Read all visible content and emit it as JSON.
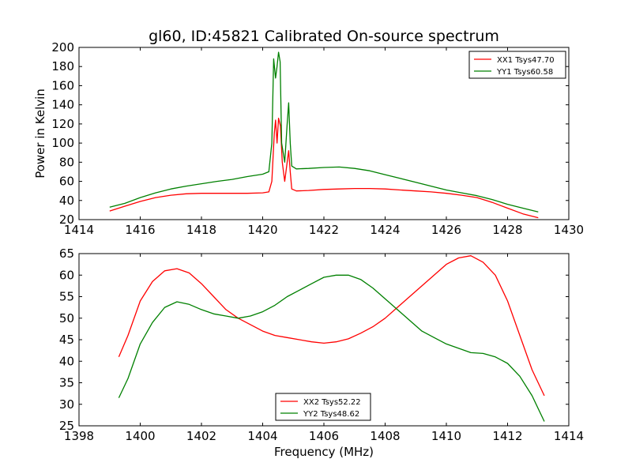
{
  "title": "gl60, ID:45821 Calibrated On-source spectrum",
  "chart_data": [
    {
      "type": "line",
      "ylabel": "Power in Kelvin",
      "xlabel": "",
      "xlim": [
        1414,
        1430
      ],
      "ylim": [
        20,
        200
      ],
      "xticks": [
        "1414",
        "1416",
        "1418",
        "1420",
        "1422",
        "1424",
        "1426",
        "1428",
        "1430"
      ],
      "yticks": [
        "20",
        "40",
        "60",
        "80",
        "100",
        "120",
        "140",
        "160",
        "180",
        "200"
      ],
      "legend_position": "top-right",
      "grid": false,
      "series": [
        {
          "name": "XX1 Tsys47.70",
          "color": "#ff0000",
          "points": [
            [
              1415.0,
              29
            ],
            [
              1415.5,
              34
            ],
            [
              1416.0,
              39
            ],
            [
              1416.5,
              43
            ],
            [
              1417.0,
              45.5
            ],
            [
              1417.5,
              47
            ],
            [
              1418.0,
              47.5
            ],
            [
              1418.5,
              47.5
            ],
            [
              1419.0,
              47.5
            ],
            [
              1419.5,
              47.5
            ],
            [
              1420.0,
              48
            ],
            [
              1420.2,
              49
            ],
            [
              1420.3,
              60
            ],
            [
              1420.38,
              110
            ],
            [
              1420.42,
              124
            ],
            [
              1420.47,
              100
            ],
            [
              1420.52,
              126
            ],
            [
              1420.58,
              118
            ],
            [
              1420.64,
              80
            ],
            [
              1420.72,
              60
            ],
            [
              1420.8,
              80
            ],
            [
              1420.85,
              92
            ],
            [
              1420.9,
              70
            ],
            [
              1420.95,
              52
            ],
            [
              1421.1,
              50
            ],
            [
              1421.5,
              50.5
            ],
            [
              1422.0,
              51.5
            ],
            [
              1422.5,
              52
            ],
            [
              1423.0,
              52.5
            ],
            [
              1423.5,
              52.5
            ],
            [
              1424.0,
              52
            ],
            [
              1424.5,
              51
            ],
            [
              1425.0,
              50
            ],
            [
              1425.5,
              49
            ],
            [
              1426.0,
              47.5
            ],
            [
              1426.5,
              45.5
            ],
            [
              1427.0,
              43
            ],
            [
              1427.5,
              38
            ],
            [
              1428.0,
              32
            ],
            [
              1428.5,
              26
            ],
            [
              1429.0,
              22
            ]
          ]
        },
        {
          "name": "YY1 Tsys60.58",
          "color": "#008000",
          "points": [
            [
              1415.0,
              33
            ],
            [
              1415.5,
              37
            ],
            [
              1416.0,
              43
            ],
            [
              1416.5,
              48
            ],
            [
              1417.0,
              52
            ],
            [
              1417.5,
              55
            ],
            [
              1418.0,
              57.5
            ],
            [
              1418.5,
              60
            ],
            [
              1419.0,
              62
            ],
            [
              1419.5,
              65
            ],
            [
              1420.0,
              67.5
            ],
            [
              1420.2,
              70
            ],
            [
              1420.3,
              100
            ],
            [
              1420.36,
              188
            ],
            [
              1420.42,
              168
            ],
            [
              1420.47,
              180
            ],
            [
              1420.52,
              195
            ],
            [
              1420.57,
              185
            ],
            [
              1420.62,
              100
            ],
            [
              1420.72,
              80
            ],
            [
              1420.8,
              120
            ],
            [
              1420.85,
              142
            ],
            [
              1420.9,
              100
            ],
            [
              1420.95,
              76
            ],
            [
              1421.1,
              73
            ],
            [
              1421.5,
              73.5
            ],
            [
              1422.0,
              74.5
            ],
            [
              1422.5,
              75
            ],
            [
              1423.0,
              73.5
            ],
            [
              1423.5,
              71
            ],
            [
              1424.0,
              67
            ],
            [
              1424.5,
              63
            ],
            [
              1425.0,
              59
            ],
            [
              1425.5,
              55
            ],
            [
              1426.0,
              51
            ],
            [
              1426.5,
              48
            ],
            [
              1427.0,
              45
            ],
            [
              1427.5,
              41
            ],
            [
              1428.0,
              36
            ],
            [
              1428.5,
              32
            ],
            [
              1429.0,
              28
            ]
          ]
        }
      ]
    },
    {
      "type": "line",
      "xlabel": "Frequency (MHz)",
      "ylabel": "",
      "xlim": [
        1398,
        1414
      ],
      "ylim": [
        25,
        65
      ],
      "xticks": [
        "1398",
        "1400",
        "1402",
        "1404",
        "1406",
        "1408",
        "1410",
        "1412",
        "1414"
      ],
      "yticks": [
        "25",
        "30",
        "35",
        "40",
        "45",
        "50",
        "55",
        "60",
        "65"
      ],
      "legend_position": "bottom-center",
      "grid": false,
      "series": [
        {
          "name": "XX2 Tsys52.22",
          "color": "#ff0000",
          "points": [
            [
              1399.3,
              41
            ],
            [
              1399.6,
              46
            ],
            [
              1400.0,
              54
            ],
            [
              1400.4,
              58.5
            ],
            [
              1400.8,
              61
            ],
            [
              1401.2,
              61.5
            ],
            [
              1401.6,
              60.5
            ],
            [
              1402.0,
              58
            ],
            [
              1402.4,
              55
            ],
            [
              1402.8,
              52
            ],
            [
              1403.2,
              50
            ],
            [
              1403.6,
              48.5
            ],
            [
              1404.0,
              47
            ],
            [
              1404.4,
              46
            ],
            [
              1404.8,
              45.5
            ],
            [
              1405.2,
              45
            ],
            [
              1405.6,
              44.5
            ],
            [
              1406.0,
              44.2
            ],
            [
              1406.4,
              44.5
            ],
            [
              1406.8,
              45.2
            ],
            [
              1407.2,
              46.5
            ],
            [
              1407.6,
              48
            ],
            [
              1408.0,
              50
            ],
            [
              1408.4,
              52.5
            ],
            [
              1408.8,
              55
            ],
            [
              1409.2,
              57.5
            ],
            [
              1409.6,
              60
            ],
            [
              1410.0,
              62.5
            ],
            [
              1410.4,
              64
            ],
            [
              1410.8,
              64.5
            ],
            [
              1411.2,
              63
            ],
            [
              1411.6,
              60
            ],
            [
              1412.0,
              54
            ],
            [
              1412.4,
              46
            ],
            [
              1412.8,
              38
            ],
            [
              1413.2,
              32
            ]
          ]
        },
        {
          "name": "YY2 Tsys48.62",
          "color": "#008000",
          "points": [
            [
              1399.3,
              31.5
            ],
            [
              1399.6,
              36
            ],
            [
              1400.0,
              44
            ],
            [
              1400.4,
              49
            ],
            [
              1400.8,
              52.5
            ],
            [
              1401.2,
              53.8
            ],
            [
              1401.6,
              53.2
            ],
            [
              1402.0,
              52
            ],
            [
              1402.4,
              51
            ],
            [
              1402.8,
              50.5
            ],
            [
              1403.2,
              50
            ],
            [
              1403.6,
              50.5
            ],
            [
              1404.0,
              51.5
            ],
            [
              1404.4,
              53
            ],
            [
              1404.8,
              55
            ],
            [
              1405.2,
              56.5
            ],
            [
              1405.6,
              58
            ],
            [
              1406.0,
              59.5
            ],
            [
              1406.4,
              60
            ],
            [
              1406.8,
              60
            ],
            [
              1407.2,
              59
            ],
            [
              1407.6,
              57
            ],
            [
              1408.0,
              54.5
            ],
            [
              1408.4,
              52
            ],
            [
              1408.8,
              49.5
            ],
            [
              1409.2,
              47
            ],
            [
              1409.6,
              45.5
            ],
            [
              1410.0,
              44
            ],
            [
              1410.4,
              43
            ],
            [
              1410.8,
              42
            ],
            [
              1411.2,
              41.8
            ],
            [
              1411.6,
              41
            ],
            [
              1412.0,
              39.5
            ],
            [
              1412.4,
              36.5
            ],
            [
              1412.8,
              32
            ],
            [
              1413.2,
              26
            ]
          ]
        }
      ]
    }
  ]
}
